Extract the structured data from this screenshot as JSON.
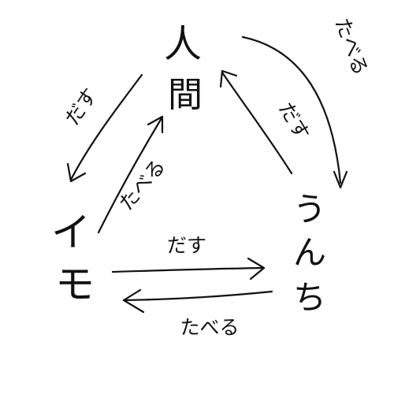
{
  "nodes": {
    "human": {
      "chars": [
        "人",
        "間"
      ]
    },
    "potato": {
      "chars": [
        "イ",
        "モ"
      ]
    },
    "poop": {
      "chars": [
        "う",
        "ん",
        "ち"
      ]
    }
  },
  "edges": {
    "human_to_poop": {
      "label": "たべる"
    },
    "poop_to_human": {
      "label": "だす"
    },
    "human_to_potato": {
      "label": "だす"
    },
    "potato_to_human": {
      "label": "たべる"
    },
    "potato_to_poop": {
      "label": "だす"
    },
    "poop_to_potato": {
      "label": "たべる"
    }
  }
}
